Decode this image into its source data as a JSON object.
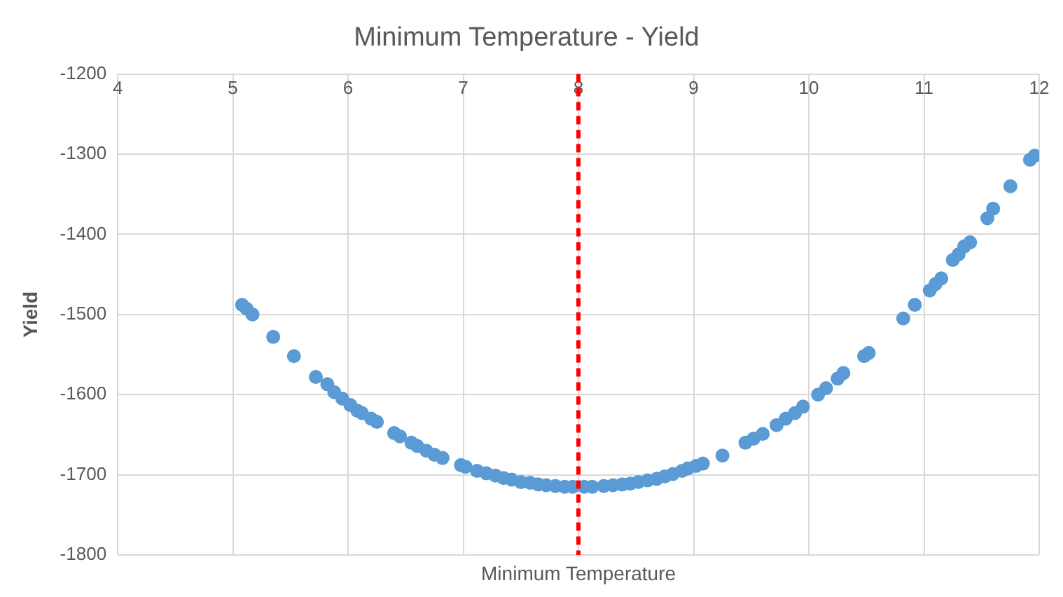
{
  "chart_data": {
    "type": "scatter",
    "title": "Minimum Temperature - Yield",
    "xlabel": "Minimum Temperature",
    "ylabel": "Yield",
    "x": [
      5.08,
      5.12,
      5.17,
      5.35,
      5.53,
      5.72,
      5.82,
      5.88,
      5.95,
      6.02,
      6.08,
      6.12,
      6.2,
      6.25,
      6.4,
      6.45,
      6.55,
      6.6,
      6.68,
      6.75,
      6.82,
      6.98,
      7.02,
      7.12,
      7.2,
      7.28,
      7.35,
      7.42,
      7.5,
      7.58,
      7.65,
      7.72,
      7.8,
      7.88,
      7.95,
      8.05,
      8.12,
      8.22,
      8.3,
      8.38,
      8.45,
      8.52,
      8.6,
      8.68,
      8.75,
      8.82,
      8.9,
      8.95,
      9.02,
      9.08,
      9.25,
      9.45,
      9.52,
      9.6,
      9.72,
      9.8,
      9.88,
      9.95,
      10.08,
      10.15,
      10.25,
      10.3,
      10.48,
      10.52,
      10.82,
      10.92,
      11.05,
      11.1,
      11.15,
      11.25,
      11.3,
      11.35,
      11.4,
      11.55,
      11.6,
      11.75,
      11.92,
      11.96
    ],
    "series": [
      {
        "color": "#5b9bd5",
        "values": [
          -1488,
          -1493,
          -1500,
          -1528,
          -1552,
          -1578,
          -1587,
          -1597,
          -1605,
          -1613,
          -1620,
          -1623,
          -1630,
          -1634,
          -1648,
          -1652,
          -1660,
          -1664,
          -1670,
          -1675,
          -1679,
          -1688,
          -1690,
          -1695,
          -1698,
          -1701,
          -1704,
          -1706,
          -1709,
          -1710,
          -1712,
          -1713,
          -1714,
          -1715,
          -1715,
          -1715,
          -1715,
          -1714,
          -1713,
          -1712,
          -1711,
          -1709,
          -1707,
          -1705,
          -1702,
          -1699,
          -1695,
          -1692,
          -1689,
          -1686,
          -1676,
          -1660,
          -1655,
          -1649,
          -1638,
          -1630,
          -1623,
          -1615,
          -1600,
          -1592,
          -1580,
          -1573,
          -1552,
          -1548,
          -1505,
          -1488,
          -1470,
          -1462,
          -1455,
          -1432,
          -1425,
          -1415,
          -1410,
          -1380,
          -1368,
          -1340,
          -1307,
          -1302
        ]
      }
    ],
    "xlim": [
      4,
      12
    ],
    "xticks": [
      4,
      5,
      6,
      7,
      8,
      9,
      10,
      11,
      12
    ],
    "ylim": [
      -1800,
      -1200
    ],
    "yticks": [
      -1800,
      -1700,
      -1600,
      -1500,
      -1400,
      -1300,
      -1200
    ],
    "ref_lines": [
      {
        "axis": "x",
        "value": 8,
        "color": "#ff0000",
        "line_style": "dashed"
      }
    ],
    "grid": true,
    "legend": false,
    "marker": "circle"
  }
}
